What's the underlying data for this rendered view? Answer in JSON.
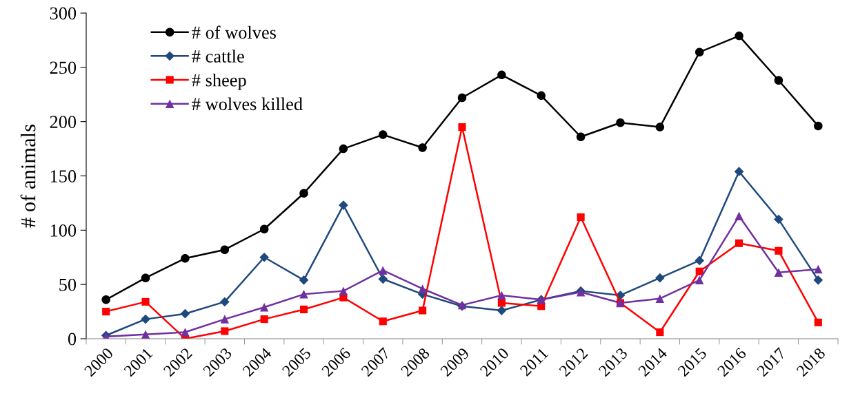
{
  "chart_data": {
    "type": "line",
    "ylabel": "# of animals",
    "categories": [
      "2000",
      "2001",
      "2002",
      "2003",
      "2004",
      "2005",
      "2006",
      "2007",
      "2008",
      "2009",
      "2010",
      "2011",
      "2012",
      "2013",
      "2014",
      "2015",
      "2016",
      "2017",
      "2018"
    ],
    "series": [
      {
        "name": "# of wolves",
        "color": "#000000",
        "marker": "circle",
        "values": [
          36,
          56,
          74,
          82,
          101,
          134,
          175,
          188,
          176,
          222,
          243,
          224,
          186,
          199,
          195,
          264,
          279,
          238,
          196
        ]
      },
      {
        "name": "# cattle",
        "color": "#1f497d",
        "marker": "diamond",
        "values": [
          3,
          18,
          23,
          34,
          75,
          54,
          123,
          55,
          41,
          30,
          26,
          36,
          44,
          40,
          56,
          72,
          154,
          110,
          54
        ]
      },
      {
        "name": "# sheep",
        "color": "#ff0000",
        "marker": "square",
        "values": [
          25,
          34,
          0,
          7,
          18,
          27,
          38,
          16,
          26,
          195,
          33,
          30,
          112,
          33,
          6,
          62,
          88,
          81,
          15
        ]
      },
      {
        "name": "# wolves killed",
        "color": "#7030a0",
        "marker": "triangle",
        "values": [
          2,
          4,
          6,
          18,
          29,
          41,
          44,
          63,
          46,
          31,
          40,
          36,
          43,
          33,
          37,
          54,
          113,
          61,
          64
        ]
      }
    ],
    "ylim": [
      0,
      300
    ],
    "yticks": [
      0,
      50,
      100,
      150,
      200,
      250,
      300
    ],
    "grid": false,
    "legend": "top left",
    "line_style": "solid"
  }
}
